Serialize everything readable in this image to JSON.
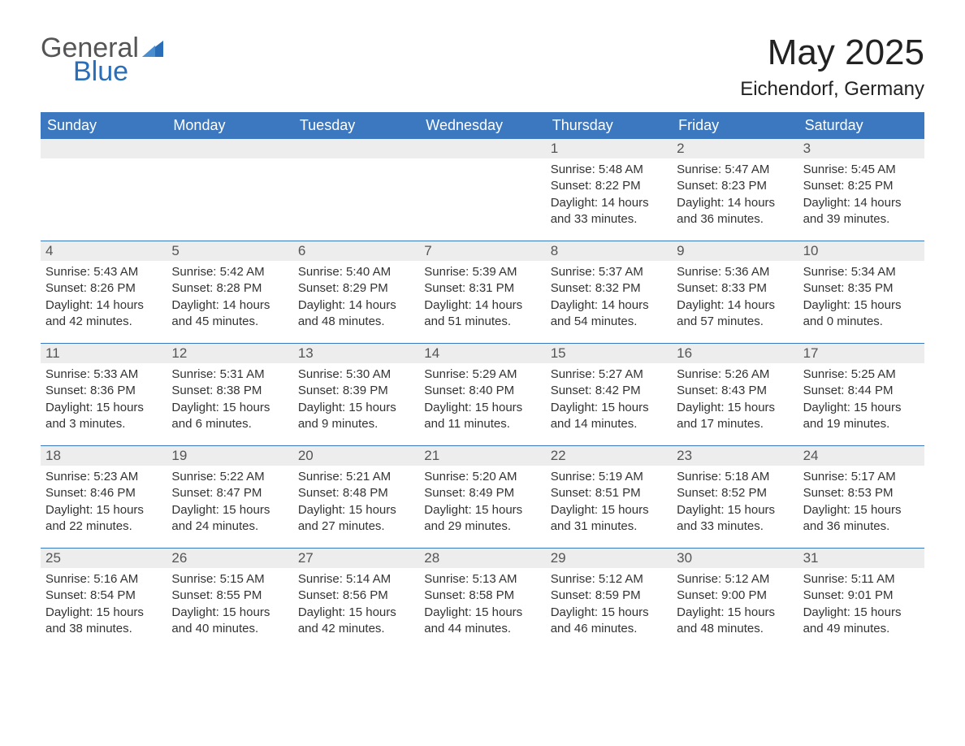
{
  "logo": {
    "general": "General",
    "blue": "Blue",
    "shape_color": "#2a6db8"
  },
  "title": "May 2025",
  "location": "Eichendorf, Germany",
  "colors": {
    "header_bg": "#3b78c0",
    "header_text": "#ffffff",
    "date_bar_bg": "#ededed",
    "date_text": "#555555",
    "body_text": "#333333",
    "week_border": "#3b78c0"
  },
  "day_names": [
    "Sunday",
    "Monday",
    "Tuesday",
    "Wednesday",
    "Thursday",
    "Friday",
    "Saturday"
  ],
  "weeks": [
    [
      {
        "day": "",
        "sunrise": "",
        "sunset": "",
        "daylight": ""
      },
      {
        "day": "",
        "sunrise": "",
        "sunset": "",
        "daylight": ""
      },
      {
        "day": "",
        "sunrise": "",
        "sunset": "",
        "daylight": ""
      },
      {
        "day": "",
        "sunrise": "",
        "sunset": "",
        "daylight": ""
      },
      {
        "day": "1",
        "sunrise": "Sunrise: 5:48 AM",
        "sunset": "Sunset: 8:22 PM",
        "daylight": "Daylight: 14 hours and 33 minutes."
      },
      {
        "day": "2",
        "sunrise": "Sunrise: 5:47 AM",
        "sunset": "Sunset: 8:23 PM",
        "daylight": "Daylight: 14 hours and 36 minutes."
      },
      {
        "day": "3",
        "sunrise": "Sunrise: 5:45 AM",
        "sunset": "Sunset: 8:25 PM",
        "daylight": "Daylight: 14 hours and 39 minutes."
      }
    ],
    [
      {
        "day": "4",
        "sunrise": "Sunrise: 5:43 AM",
        "sunset": "Sunset: 8:26 PM",
        "daylight": "Daylight: 14 hours and 42 minutes."
      },
      {
        "day": "5",
        "sunrise": "Sunrise: 5:42 AM",
        "sunset": "Sunset: 8:28 PM",
        "daylight": "Daylight: 14 hours and 45 minutes."
      },
      {
        "day": "6",
        "sunrise": "Sunrise: 5:40 AM",
        "sunset": "Sunset: 8:29 PM",
        "daylight": "Daylight: 14 hours and 48 minutes."
      },
      {
        "day": "7",
        "sunrise": "Sunrise: 5:39 AM",
        "sunset": "Sunset: 8:31 PM",
        "daylight": "Daylight: 14 hours and 51 minutes."
      },
      {
        "day": "8",
        "sunrise": "Sunrise: 5:37 AM",
        "sunset": "Sunset: 8:32 PM",
        "daylight": "Daylight: 14 hours and 54 minutes."
      },
      {
        "day": "9",
        "sunrise": "Sunrise: 5:36 AM",
        "sunset": "Sunset: 8:33 PM",
        "daylight": "Daylight: 14 hours and 57 minutes."
      },
      {
        "day": "10",
        "sunrise": "Sunrise: 5:34 AM",
        "sunset": "Sunset: 8:35 PM",
        "daylight": "Daylight: 15 hours and 0 minutes."
      }
    ],
    [
      {
        "day": "11",
        "sunrise": "Sunrise: 5:33 AM",
        "sunset": "Sunset: 8:36 PM",
        "daylight": "Daylight: 15 hours and 3 minutes."
      },
      {
        "day": "12",
        "sunrise": "Sunrise: 5:31 AM",
        "sunset": "Sunset: 8:38 PM",
        "daylight": "Daylight: 15 hours and 6 minutes."
      },
      {
        "day": "13",
        "sunrise": "Sunrise: 5:30 AM",
        "sunset": "Sunset: 8:39 PM",
        "daylight": "Daylight: 15 hours and 9 minutes."
      },
      {
        "day": "14",
        "sunrise": "Sunrise: 5:29 AM",
        "sunset": "Sunset: 8:40 PM",
        "daylight": "Daylight: 15 hours and 11 minutes."
      },
      {
        "day": "15",
        "sunrise": "Sunrise: 5:27 AM",
        "sunset": "Sunset: 8:42 PM",
        "daylight": "Daylight: 15 hours and 14 minutes."
      },
      {
        "day": "16",
        "sunrise": "Sunrise: 5:26 AM",
        "sunset": "Sunset: 8:43 PM",
        "daylight": "Daylight: 15 hours and 17 minutes."
      },
      {
        "day": "17",
        "sunrise": "Sunrise: 5:25 AM",
        "sunset": "Sunset: 8:44 PM",
        "daylight": "Daylight: 15 hours and 19 minutes."
      }
    ],
    [
      {
        "day": "18",
        "sunrise": "Sunrise: 5:23 AM",
        "sunset": "Sunset: 8:46 PM",
        "daylight": "Daylight: 15 hours and 22 minutes."
      },
      {
        "day": "19",
        "sunrise": "Sunrise: 5:22 AM",
        "sunset": "Sunset: 8:47 PM",
        "daylight": "Daylight: 15 hours and 24 minutes."
      },
      {
        "day": "20",
        "sunrise": "Sunrise: 5:21 AM",
        "sunset": "Sunset: 8:48 PM",
        "daylight": "Daylight: 15 hours and 27 minutes."
      },
      {
        "day": "21",
        "sunrise": "Sunrise: 5:20 AM",
        "sunset": "Sunset: 8:49 PM",
        "daylight": "Daylight: 15 hours and 29 minutes."
      },
      {
        "day": "22",
        "sunrise": "Sunrise: 5:19 AM",
        "sunset": "Sunset: 8:51 PM",
        "daylight": "Daylight: 15 hours and 31 minutes."
      },
      {
        "day": "23",
        "sunrise": "Sunrise: 5:18 AM",
        "sunset": "Sunset: 8:52 PM",
        "daylight": "Daylight: 15 hours and 33 minutes."
      },
      {
        "day": "24",
        "sunrise": "Sunrise: 5:17 AM",
        "sunset": "Sunset: 8:53 PM",
        "daylight": "Daylight: 15 hours and 36 minutes."
      }
    ],
    [
      {
        "day": "25",
        "sunrise": "Sunrise: 5:16 AM",
        "sunset": "Sunset: 8:54 PM",
        "daylight": "Daylight: 15 hours and 38 minutes."
      },
      {
        "day": "26",
        "sunrise": "Sunrise: 5:15 AM",
        "sunset": "Sunset: 8:55 PM",
        "daylight": "Daylight: 15 hours and 40 minutes."
      },
      {
        "day": "27",
        "sunrise": "Sunrise: 5:14 AM",
        "sunset": "Sunset: 8:56 PM",
        "daylight": "Daylight: 15 hours and 42 minutes."
      },
      {
        "day": "28",
        "sunrise": "Sunrise: 5:13 AM",
        "sunset": "Sunset: 8:58 PM",
        "daylight": "Daylight: 15 hours and 44 minutes."
      },
      {
        "day": "29",
        "sunrise": "Sunrise: 5:12 AM",
        "sunset": "Sunset: 8:59 PM",
        "daylight": "Daylight: 15 hours and 46 minutes."
      },
      {
        "day": "30",
        "sunrise": "Sunrise: 5:12 AM",
        "sunset": "Sunset: 9:00 PM",
        "daylight": "Daylight: 15 hours and 48 minutes."
      },
      {
        "day": "31",
        "sunrise": "Sunrise: 5:11 AM",
        "sunset": "Sunset: 9:01 PM",
        "daylight": "Daylight: 15 hours and 49 minutes."
      }
    ]
  ]
}
